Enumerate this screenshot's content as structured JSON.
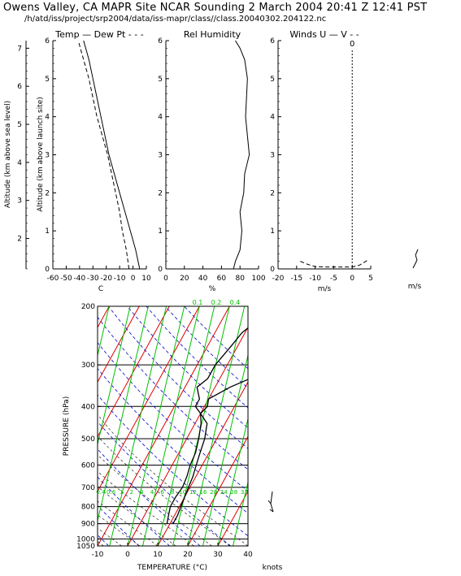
{
  "header": {
    "title": "Owens Valley, CA MAPR Site NCAR Sounding  2 March 2004 20:41 Z 12:41 PST",
    "path": "/h/atd/iss/project/srp2004/data/iss-mapr/class//class.20040302.204122.nc"
  },
  "chart_data": [
    {
      "id": "temp_dewpt",
      "type": "line",
      "title": "Temp — Dew Pt - - -",
      "xlabel": "C",
      "ylabel": "Altitude (km above launch site)",
      "ylabel_outer": "Altitude (km above sea level)",
      "xlim": [
        -60,
        10
      ],
      "ylim": [
        0,
        6
      ],
      "x_ticks": [
        "-60",
        "-50",
        "-40",
        "-30",
        "-20",
        "-10",
        "0",
        "10"
      ],
      "y_ticks": [
        "0",
        "1",
        "2",
        "3",
        "4",
        "5",
        "6"
      ],
      "outer_y_ticks": [
        "2",
        "3",
        "4",
        "5",
        "6",
        "7"
      ],
      "series": [
        {
          "name": "Temp",
          "style": "solid",
          "points": [
            [
              5,
              0
            ],
            [
              2,
              0.5
            ],
            [
              -2,
              1
            ],
            [
              -6,
              1.5
            ],
            [
              -10,
              2
            ],
            [
              -14,
              2.5
            ],
            [
              -18,
              3
            ],
            [
              -21,
              3.5
            ],
            [
              -24,
              4
            ],
            [
              -27,
              4.5
            ],
            [
              -30,
              5
            ],
            [
              -33,
              5.5
            ],
            [
              -37,
              6
            ]
          ]
        },
        {
          "name": "Dew Pt",
          "style": "dashed",
          "points": [
            [
              -3,
              0
            ],
            [
              -5,
              0.5
            ],
            [
              -8,
              1
            ],
            [
              -10,
              1.5
            ],
            [
              -13,
              2
            ],
            [
              -16,
              2.5
            ],
            [
              -19,
              3
            ],
            [
              -23,
              3.5
            ],
            [
              -27,
              4
            ],
            [
              -30,
              4.5
            ],
            [
              -33,
              5
            ],
            [
              -37,
              5.5
            ],
            [
              -41,
              6
            ]
          ]
        }
      ]
    },
    {
      "id": "rh",
      "type": "line",
      "title": "Rel Humidity",
      "xlabel": "%",
      "xlim": [
        0,
        100
      ],
      "ylim": [
        0,
        6
      ],
      "x_ticks": [
        "0",
        "20",
        "40",
        "60",
        "80",
        "100"
      ],
      "y_ticks": [
        "0",
        "1",
        "2",
        "3",
        "4",
        "5",
        "6"
      ],
      "series": [
        {
          "name": "Rel Humidity",
          "style": "solid",
          "points": [
            [
              73,
              0
            ],
            [
              75,
              0.2
            ],
            [
              80,
              0.5
            ],
            [
              82,
              1
            ],
            [
              80,
              1.5
            ],
            [
              84,
              2
            ],
            [
              85,
              2.5
            ],
            [
              90,
              3
            ],
            [
              88,
              3.5
            ],
            [
              86,
              4
            ],
            [
              87,
              4.5
            ],
            [
              88,
              5
            ],
            [
              85,
              5.5
            ],
            [
              80,
              5.8
            ],
            [
              75,
              6
            ]
          ]
        }
      ]
    },
    {
      "id": "winds",
      "type": "line",
      "title": "Winds U — V - -",
      "xlabel": "m/s",
      "xlabel_right": "m/s",
      "top_label": "0",
      "xlim": [
        -20,
        5
      ],
      "ylim": [
        0,
        6
      ],
      "x_ticks": [
        "-20",
        "-15",
        "-10",
        "-5",
        "0",
        "5"
      ],
      "y_ticks": [
        "0",
        "1",
        "2",
        "3",
        "4",
        "5",
        "6"
      ],
      "series": [
        {
          "name": "U",
          "style": "dashed",
          "points": [
            [
              -14,
              0.2
            ],
            [
              -12,
              0.12
            ],
            [
              -10,
              0.06
            ],
            [
              -7,
              0.05
            ],
            [
              0,
              0.05
            ],
            [
              2,
              0.1
            ],
            [
              4,
              0.22
            ]
          ]
        }
      ]
    },
    {
      "id": "skewt",
      "type": "line",
      "title": "",
      "xlabel": "TEMPERATURE (°C)",
      "ylabel": "PRESSURE (hPa)",
      "barb_label": "knots",
      "xlim": [
        -10,
        40
      ],
      "ylim": [
        1050,
        200
      ],
      "log_y": true,
      "x_ticks": [
        "-10",
        "0",
        "10",
        "20",
        "30",
        "40"
      ],
      "p_ticks": [
        "200",
        "300",
        "400",
        "500",
        "600",
        "700",
        "800",
        "900",
        "1000",
        "1050"
      ],
      "mixing_ratio_top": [
        "0.1",
        "0.2",
        "0.4"
      ],
      "mixing_ratio_mid": [
        "0.4",
        "0.6",
        "1",
        "2",
        "3",
        "4",
        "6",
        "8",
        "10",
        "12",
        "16",
        "20",
        "24",
        "28",
        "32"
      ],
      "colors": {
        "isotherm": "#e00000",
        "mixing_ratio": "#00c000",
        "dry_adiabat": "#0000cc",
        "temp": "#000000"
      },
      "series": [
        {
          "name": "Temperature",
          "style": "solid",
          "points": [
            [
              900,
              11
            ],
            [
              850,
              11
            ],
            [
              800,
              10.5
            ],
            [
              750,
              10
            ],
            [
              700,
              9.5
            ],
            [
              650,
              9
            ],
            [
              600,
              8
            ],
            [
              550,
              7
            ],
            [
              500,
              6
            ],
            [
              450,
              4
            ],
            [
              420,
              0
            ],
            [
              400,
              -3
            ],
            [
              380,
              -3
            ],
            [
              350,
              -6
            ],
            [
              330,
              -4
            ],
            [
              300,
              -4
            ],
            [
              280,
              -3
            ],
            [
              260,
              -2
            ],
            [
              240,
              -1
            ],
            [
              220,
              2
            ],
            [
              210,
              4
            ],
            [
              200,
              7
            ]
          ]
        },
        {
          "name": "Dew Point",
          "style": "solid",
          "points": [
            [
              900,
              9
            ],
            [
              850,
              8
            ],
            [
              800,
              7
            ],
            [
              750,
              7
            ],
            [
              700,
              7.5
            ],
            [
              650,
              7
            ],
            [
              600,
              6
            ],
            [
              550,
              5.5
            ],
            [
              500,
              4
            ],
            [
              450,
              2
            ],
            [
              420,
              0
            ],
            [
              400,
              1
            ],
            [
              380,
              0
            ],
            [
              350,
              5
            ],
            [
              330,
              10
            ],
            [
              300,
              14
            ],
            [
              280,
              17
            ],
            [
              260,
              20
            ],
            [
              240,
              22
            ],
            [
              220,
              25
            ],
            [
              210,
              27
            ],
            [
              200,
              29
            ]
          ]
        }
      ]
    }
  ]
}
